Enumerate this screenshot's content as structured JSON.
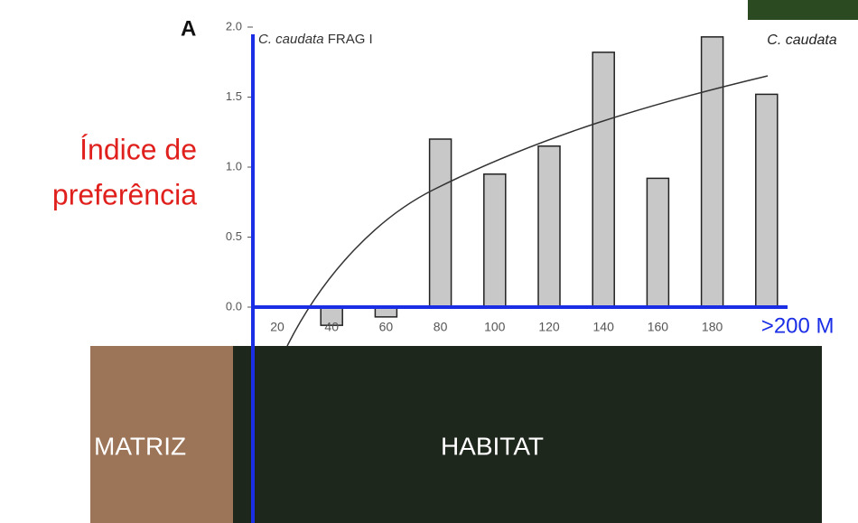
{
  "chart_data": {
    "type": "bar",
    "panel_label": "A",
    "title_italic": "C. caudata",
    "title": "FRAG I",
    "y_label": [
      "Índice de",
      "preferência"
    ],
    "photo_caption": "C. caudata",
    "categories": [
      "20",
      "40",
      "60",
      "80",
      "100",
      "120",
      "140",
      "160",
      "180",
      ">200 M"
    ],
    "values": [
      0,
      -0.13,
      -0.07,
      1.2,
      0.95,
      1.15,
      1.82,
      0.92,
      1.93,
      1.52
    ],
    "color": "#c8c8c8",
    "ylim": [
      -0.25,
      2.0
    ],
    "yticks": [
      {
        "value": 0,
        "label": "0.0"
      },
      {
        "value": 0.5,
        "label": "0.5"
      },
      {
        "value": 1,
        "label": "1.0"
      },
      {
        "value": 1.5,
        "label": "1.5"
      },
      {
        "value": 2,
        "label": "2.0"
      }
    ],
    "regions": [
      "MATRIZ",
      "HABITAT"
    ]
  }
}
